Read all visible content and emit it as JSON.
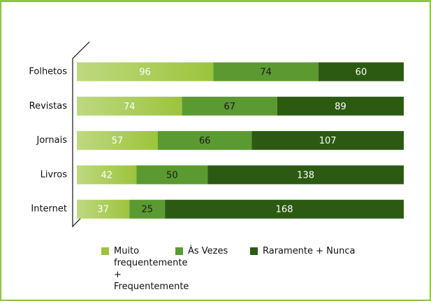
{
  "chart_data": {
    "type": "stacked_barh",
    "categories": [
      "Folhetos",
      "Revistas",
      "Jornais",
      "Livros",
      "Internet"
    ],
    "series": [
      {
        "name": "Muito frequentemente + Frequentemente",
        "color": "#9cc43c",
        "label_color": "#ffffff",
        "values": [
          96,
          74,
          57,
          42,
          37
        ]
      },
      {
        "name": "Às Vezes",
        "color": "#5b9a30",
        "label_color": "#1a1a1a",
        "values": [
          74,
          67,
          66,
          50,
          25
        ]
      },
      {
        "name": "Raramente + Nunca",
        "color": "#2c5a12",
        "label_color": "#ffffff",
        "values": [
          60,
          89,
          107,
          138,
          168
        ]
      }
    ],
    "xlim": [
      0,
      230
    ],
    "legend": "bottom"
  }
}
